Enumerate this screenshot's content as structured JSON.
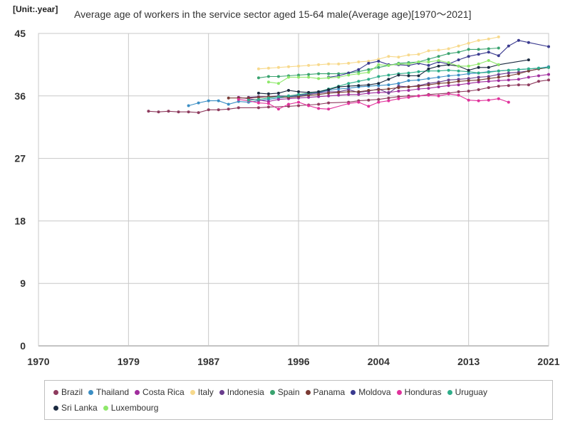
{
  "chart_data": {
    "type": "line",
    "unit_label": "[Unit:.year]",
    "title": "Average age of workers in the service sector aged 15-64 male(Average age)[1970～2021]",
    "xlabel": "",
    "ylabel": "",
    "xlim": [
      1970,
      2021
    ],
    "ylim": [
      0,
      45
    ],
    "x_ticks": [
      "1970",
      "1979",
      "1987",
      "1996",
      "2004",
      "2013",
      "2021"
    ],
    "y_ticks": [
      "0",
      "9",
      "18",
      "27",
      "36",
      "45"
    ],
    "grid": true,
    "legend_position": "bottom",
    "series": [
      {
        "name": "Brazil",
        "color": "#8e3b5e",
        "x": [
          1981,
          1982,
          1983,
          1984,
          1985,
          1986,
          1987,
          1988,
          1989,
          1990,
          1992,
          1993,
          1995,
          1996,
          1997,
          1998,
          1999,
          2001,
          2002,
          2003,
          2004,
          2005,
          2006,
          2007,
          2008,
          2009,
          2011,
          2012,
          2013,
          2014,
          2015,
          2016,
          2017,
          2018,
          2019,
          2020,
          2021
        ],
        "y": [
          33.8,
          33.7,
          33.8,
          33.7,
          33.7,
          33.6,
          34,
          34,
          34.1,
          34.3,
          34.3,
          34.4,
          34.5,
          34.6,
          34.7,
          34.8,
          35,
          35.1,
          35.3,
          35.4,
          35.5,
          35.7,
          35.9,
          36,
          36,
          36.2,
          36.4,
          36.6,
          36.7,
          36.9,
          37.2,
          37.4,
          37.5,
          37.6,
          37.6,
          38.1,
          38.3
        ]
      },
      {
        "name": "Thailand",
        "color": "#3b8ec4",
        "x": [
          1985,
          1986,
          1987,
          1988,
          1989,
          1990,
          1991,
          1992,
          1993,
          1994,
          1995,
          1996,
          1997,
          1998,
          1999,
          2000,
          2001,
          2002,
          2003,
          2004,
          2005,
          2006,
          2007,
          2008,
          2009,
          2010,
          2011,
          2012,
          2013,
          2014,
          2015,
          2016,
          2017,
          2018,
          2019,
          2020,
          2021
        ],
        "y": [
          34.6,
          35,
          35.3,
          35.3,
          34.8,
          35.2,
          35.1,
          35.3,
          35.5,
          35.7,
          35.9,
          36,
          36.2,
          36.5,
          36.8,
          37,
          37.1,
          37.3,
          37.4,
          37.5,
          37.6,
          37.8,
          38.2,
          38.3,
          38.5,
          38.7,
          38.9,
          39,
          39.2,
          39.3,
          39.5,
          39.6,
          39.7,
          39.8,
          39.9,
          40,
          40.2
        ]
      },
      {
        "name": "Costa Rica",
        "color": "#a02d9d",
        "x": [
          1990,
          1991,
          1992,
          1993,
          1994,
          1995,
          1996,
          1997,
          1998,
          1999,
          2000,
          2001,
          2002,
          2003,
          2004,
          2005,
          2006,
          2007,
          2008,
          2009,
          2010,
          2011,
          2012,
          2013,
          2014,
          2015,
          2016,
          2017,
          2018,
          2019,
          2020,
          2021
        ],
        "y": [
          35.8,
          35.6,
          35.4,
          35.2,
          35.5,
          35.6,
          35.7,
          35.8,
          35.9,
          36,
          36.1,
          36.2,
          36.2,
          36.4,
          36.5,
          36.5,
          36.7,
          36.8,
          37,
          37.1,
          37.3,
          37.5,
          37.6,
          37.8,
          38,
          38.1,
          38.2,
          38.3,
          38.4,
          38.7,
          38.9,
          39.1
        ]
      },
      {
        "name": "Italy",
        "color": "#f7d98c",
        "x": [
          1992,
          1993,
          1994,
          1995,
          1996,
          1997,
          1998,
          1999,
          2000,
          2001,
          2002,
          2003,
          2004,
          2005,
          2006,
          2007,
          2008,
          2009,
          2010,
          2011,
          2012,
          2013,
          2014,
          2015,
          2016
        ],
        "y": [
          39.9,
          40,
          40.1,
          40.2,
          40.3,
          40.4,
          40.5,
          40.6,
          40.6,
          40.7,
          40.9,
          41,
          41.3,
          41.7,
          41.6,
          41.9,
          42,
          42.5,
          42.6,
          42.8,
          43.2,
          43.6,
          44,
          44.2,
          44.5
        ]
      },
      {
        "name": "Indonesia",
        "color": "#6b3e8e",
        "x": [
          1991,
          1992,
          1993,
          1994,
          1995,
          1996,
          1997,
          1998,
          1999,
          2000,
          2001,
          2002,
          2003,
          2004,
          2005,
          2006,
          2007,
          2008,
          2009,
          2010,
          2011,
          2012,
          2013,
          2014,
          2015,
          2016,
          2017,
          2018,
          2019,
          2020,
          2021
        ],
        "y": [
          35.8,
          35.9,
          35.9,
          36,
          36,
          36.1,
          36.3,
          36.4,
          36.6,
          36.6,
          36.9,
          36.5,
          36.7,
          37,
          36.4,
          37.4,
          37.3,
          37.5,
          37.8,
          38,
          38.3,
          38.4,
          38.5,
          38.7,
          38.8,
          39.1,
          39.3,
          39.4,
          39.6,
          39.9,
          40.1
        ]
      },
      {
        "name": "Spain",
        "color": "#3aa36f",
        "x": [
          1992,
          1993,
          1994,
          1995,
          1996,
          1997,
          1998,
          1999,
          2000,
          2001,
          2002,
          2003,
          2004,
          2005,
          2006,
          2007,
          2008,
          2009,
          2010,
          2011,
          2012,
          2013,
          2014,
          2015,
          2016
        ],
        "y": [
          38.6,
          38.8,
          38.8,
          38.9,
          39,
          39.1,
          39.2,
          39.2,
          39.2,
          39.3,
          39.5,
          39.8,
          40.1,
          40.4,
          40.7,
          40.8,
          40.9,
          41.3,
          41.7,
          42.1,
          42.3,
          42.7,
          42.7,
          42.8,
          42.9
        ]
      },
      {
        "name": "Panama",
        "color": "#7a3b34",
        "x": [
          1989,
          1990,
          1991,
          1992,
          1993,
          1994,
          1995,
          1996,
          1997,
          1998,
          1999,
          2000,
          2001,
          2002,
          2003,
          2004,
          2005,
          2006,
          2007,
          2008,
          2009,
          2010,
          2011,
          2012,
          2013,
          2014,
          2015,
          2016,
          2017,
          2018,
          2019,
          2020,
          2021
        ],
        "y": [
          35.7,
          35.7,
          35.7,
          35.8,
          35.9,
          35.9,
          35.8,
          35.9,
          36.1,
          36.2,
          36.4,
          36.5,
          36.6,
          36.6,
          36.8,
          36.9,
          37,
          37.2,
          37.3,
          37.4,
          37.6,
          37.8,
          37.9,
          38.1,
          38.2,
          38.3,
          38.5,
          38.7,
          38.9,
          39.2,
          39.6,
          39.9,
          40.1
        ]
      },
      {
        "name": "Moldova",
        "color": "#3a3a8f",
        "x": [
          1999,
          2000,
          2001,
          2002,
          2003,
          2004,
          2005,
          2006,
          2007,
          2008,
          2009,
          2010,
          2011,
          2012,
          2013,
          2014,
          2015,
          2016,
          2017,
          2018,
          2019,
          2021
        ],
        "y": [
          38.7,
          38.9,
          39.3,
          39.8,
          40.7,
          41,
          40.5,
          40.5,
          40.4,
          40.7,
          40.4,
          40.9,
          40.6,
          41.2,
          41.7,
          42,
          42.3,
          41.8,
          43.2,
          44,
          43.7,
          43.1
        ]
      },
      {
        "name": "Honduras",
        "color": "#e0329b",
        "x": [
          1990,
          1991,
          1992,
          1993,
          1994,
          1995,
          1996,
          1997,
          1998,
          1999,
          2001,
          2002,
          2003,
          2004,
          2005,
          2006,
          2007,
          2008,
          2009,
          2010,
          2011,
          2012,
          2013,
          2014,
          2015,
          2016,
          2017
        ],
        "y": [
          35.5,
          35.3,
          35,
          34.9,
          34.1,
          34.8,
          35.1,
          34.6,
          34.2,
          34.1,
          34.9,
          35.1,
          34.5,
          35.1,
          35.3,
          35.6,
          35.8,
          36,
          36.1,
          36,
          36.3,
          36.1,
          35.4,
          35.3,
          35.4,
          35.6,
          35.1
        ]
      },
      {
        "name": "Uruguay",
        "color": "#2fae8a",
        "x": [
          1991,
          1992,
          1993,
          1994,
          1995,
          1996,
          1997,
          1998,
          1999,
          2000,
          2001,
          2002,
          2003,
          2004,
          2005,
          2006,
          2007,
          2008,
          2009,
          2010,
          2011,
          2012,
          2013,
          2014,
          2015,
          2016,
          2017,
          2018,
          2019,
          2020,
          2021
        ],
        "y": [
          35.4,
          35.5,
          35.7,
          35.9,
          36,
          36.2,
          36.4,
          36.6,
          37,
          37.4,
          37.8,
          38.1,
          38.4,
          38.8,
          39,
          39.2,
          39.3,
          39.5,
          39.6,
          39.6,
          39.7,
          39.6,
          39.5,
          39.3,
          39.4,
          39.6,
          39.7,
          39.8,
          39.9,
          40,
          40.1
        ]
      },
      {
        "name": "Sri Lanka",
        "color": "#1b2a40",
        "x": [
          1992,
          1993,
          1994,
          1995,
          1996,
          1997,
          1998,
          1999,
          2000,
          2001,
          2002,
          2003,
          2004,
          2005,
          2006,
          2007,
          2008,
          2009,
          2010,
          2011,
          2012,
          2013,
          2014,
          2015,
          2016,
          2019
        ],
        "y": [
          36.4,
          36.3,
          36.4,
          36.8,
          36.6,
          36.5,
          36.6,
          36.9,
          37.3,
          37.4,
          37.5,
          37.6,
          37.8,
          38.4,
          39,
          38.9,
          38.9,
          39.9,
          40.3,
          40.5,
          40.3,
          39.7,
          40.1,
          40.1,
          40.5,
          41.2
        ]
      },
      {
        "name": "Luxembourg",
        "color": "#8ee86a",
        "x": [
          1993,
          1994,
          1995,
          1996,
          1997,
          1998,
          1999,
          2000,
          2001,
          2002,
          2003,
          2004,
          2005,
          2006,
          2007,
          2008,
          2009,
          2010,
          2011,
          2012,
          2013,
          2014,
          2015,
          2016
        ],
        "y": [
          38,
          37.8,
          38.7,
          38.7,
          38.7,
          38.5,
          38.6,
          38.7,
          39,
          39.2,
          39.4,
          40.5,
          40.4,
          40.6,
          40.6,
          40.9,
          40.9,
          41.1,
          40.8,
          40.3,
          40.3,
          40.6,
          41.1,
          40.5
        ]
      }
    ]
  }
}
